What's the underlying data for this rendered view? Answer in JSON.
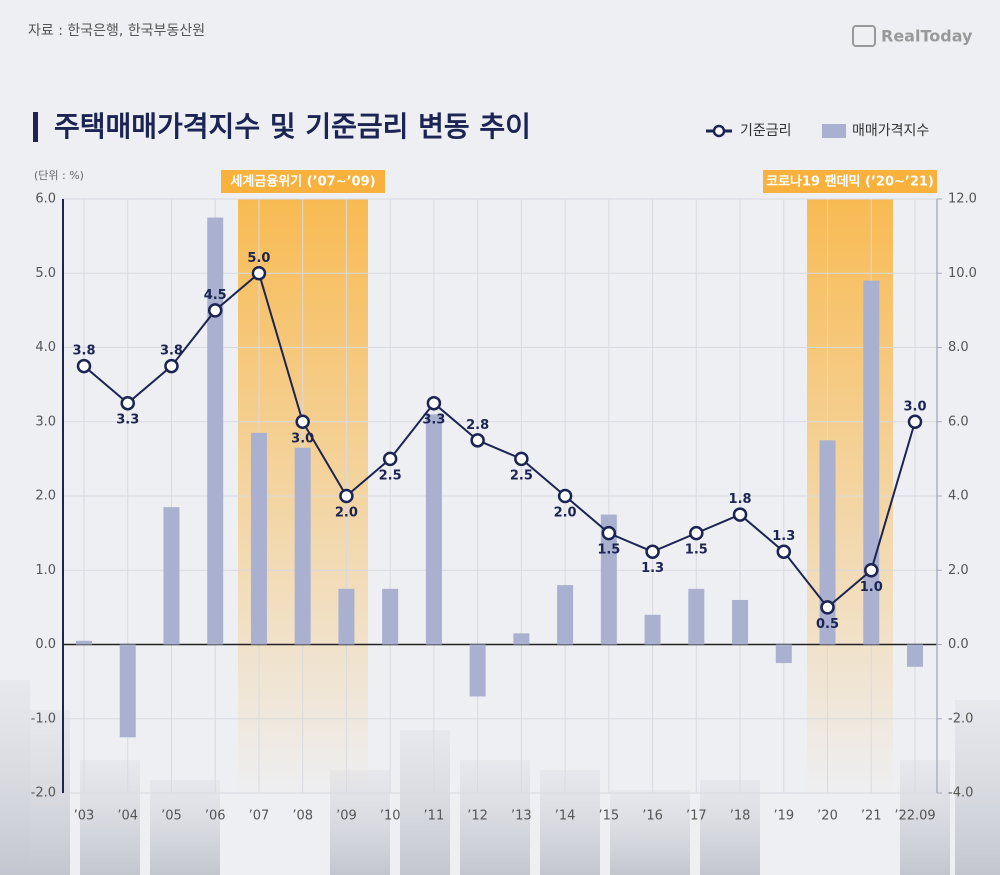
{
  "chart_data": {
    "type": "combo",
    "title": "주택매매가격지수 및 기준금리 변동 추이",
    "source": "자료 : 한국은행, 한국부동산원",
    "logo": "RealToday",
    "y_unit": "(단위 : %)",
    "categories": [
      "’03",
      "’04",
      "’05",
      "’06",
      "’07",
      "’08",
      "’09",
      "’10",
      "’11",
      "’12",
      "’13",
      "’14",
      "’15",
      "’16",
      "’17",
      "’18",
      "’19",
      "’20",
      "’21",
      "’22.09"
    ],
    "series": [
      {
        "name": "기준금리",
        "type": "line",
        "color": "#1b2452",
        "values": [
          3.75,
          3.25,
          3.75,
          4.5,
          5.0,
          3.0,
          2.0,
          2.5,
          3.25,
          2.75,
          2.5,
          2.0,
          1.5,
          1.25,
          1.5,
          1.75,
          1.25,
          0.5,
          1.0,
          3.0
        ],
        "value_labels": [
          "3.8",
          "3.3",
          "3.8",
          "4.5",
          "5.0",
          "3.0",
          "2.0",
          "2.5",
          "3.3",
          "2.8",
          "2.5",
          "2.0",
          "1.5",
          "1.3",
          "1.5",
          "1.8",
          "1.3",
          "0.5",
          "1.0",
          "3.0"
        ]
      },
      {
        "name": "매매가격지수",
        "type": "bar",
        "axis": "y2",
        "color": "#a9b0d0",
        "values": [
          0.1,
          -2.5,
          3.7,
          11.5,
          5.7,
          5.3,
          1.5,
          1.5,
          6.2,
          -1.4,
          0.3,
          1.6,
          3.5,
          0.8,
          1.5,
          1.2,
          -0.5,
          5.5,
          9.8,
          -0.6
        ]
      }
    ],
    "annotations": [
      {
        "text": "세계금융위기 (’07~’09)"
      },
      {
        "text": "코로나19 팬데믹 (’20~’21)"
      }
    ],
    "ylim": [
      -2,
      6
    ],
    "yticks": [
      {
        "value": -2,
        "label": "-2.0"
      },
      {
        "value": -1,
        "label": "-1.0"
      },
      {
        "value": 0,
        "label": "0.0"
      },
      {
        "value": 1,
        "label": "1.0"
      },
      {
        "value": 2,
        "label": "2.0"
      },
      {
        "value": 3,
        "label": "3.0"
      },
      {
        "value": 4,
        "label": "4.0"
      },
      {
        "value": 5,
        "label": "5.0"
      },
      {
        "value": 6,
        "label": "6.0"
      }
    ],
    "y2lim": [
      -4,
      12
    ],
    "y2ticks": [
      {
        "value": -4,
        "label": "-4.0"
      },
      {
        "value": -2,
        "label": "-2.0"
      },
      {
        "value": 0,
        "label": "0.0"
      },
      {
        "value": 2,
        "label": "2.0"
      },
      {
        "value": 4,
        "label": "4.0"
      },
      {
        "value": 6,
        "label": "6.0"
      },
      {
        "value": 8,
        "label": "8.0"
      },
      {
        "value": 10,
        "label": "10.0"
      },
      {
        "value": 12,
        "label": "12.0"
      }
    ],
    "grid": true
  }
}
